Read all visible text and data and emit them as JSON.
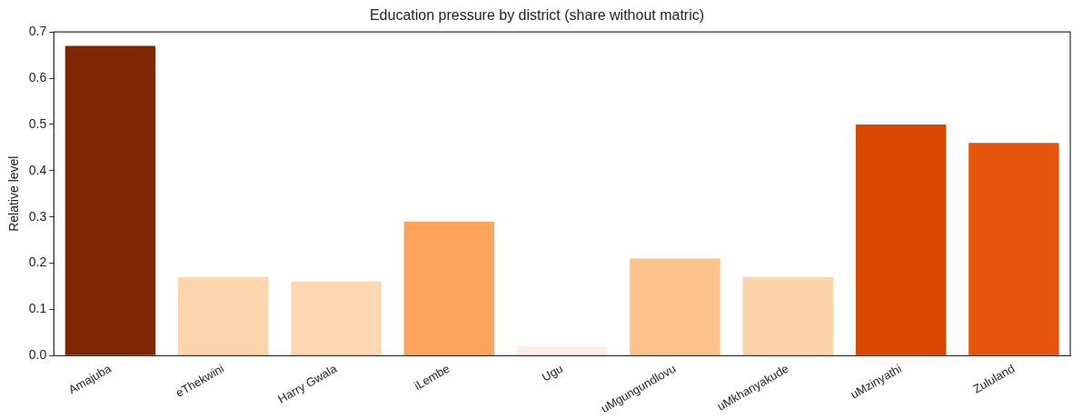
{
  "chart_data": {
    "type": "bar",
    "title": "Education pressure by district (share without matric)",
    "ylabel": "Relative level",
    "categories": [
      "Amajuba",
      "eThekwini",
      "Harry Gwala",
      "iLembe",
      "Ugu",
      "uMgungundlovu",
      "uMkhanyakude",
      "uMzinyathi",
      "Zululand"
    ],
    "values": [
      0.67,
      0.17,
      0.16,
      0.29,
      0.02,
      0.21,
      0.17,
      0.5,
      0.46
    ],
    "colors": [
      "#7f2704",
      "#fdd5ad",
      "#fdd7b0",
      "#fda35c",
      "#fff0e3",
      "#fdc38d",
      "#fdd4aa",
      "#d94801",
      "#e6550d"
    ],
    "ylim": [
      0,
      0.7
    ],
    "yticks": [
      {
        "value": 0,
        "label": "0.0"
      },
      0.1,
      0.2,
      0.3,
      0.4,
      0.5,
      0.6,
      0.7
    ],
    "grid": false,
    "legend": false
  }
}
